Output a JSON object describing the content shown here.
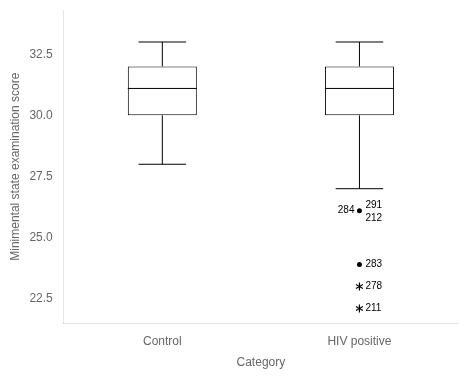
{
  "chart_data": {
    "type": "box",
    "categories": [
      "Control",
      "HIV positive"
    ],
    "boxes": [
      {
        "q1": 30.0,
        "median": 31.1,
        "q3": 32.0,
        "whisker_low": 28.0,
        "whisker_high": 33.0
      },
      {
        "q1": 30.0,
        "median": 31.1,
        "q3": 32.0,
        "whisker_low": 27.0,
        "whisker_high": 33.0
      }
    ],
    "outliers": [
      {
        "category": "HIV positive",
        "value": 26.1,
        "marker": "circle",
        "labels": [
          "284",
          "291",
          "212"
        ]
      },
      {
        "category": "HIV positive",
        "value": 23.9,
        "marker": "circle",
        "labels": [
          "283"
        ]
      },
      {
        "category": "HIV positive",
        "value": 23.0,
        "marker": "star",
        "labels": [
          "278"
        ]
      },
      {
        "category": "HIV positive",
        "value": 22.1,
        "marker": "star",
        "labels": [
          "211"
        ]
      }
    ],
    "xlabel": "Category",
    "ylabel": "Minimental state examination score",
    "ylim": [
      21.5,
      34.3
    ],
    "yticks": [
      22.5,
      {
        "value": 25,
        "label": "25.0"
      },
      27.5,
      {
        "value": 30,
        "label": "30.0"
      },
      32.5
    ],
    "color": "#000000",
    "grid": false
  }
}
